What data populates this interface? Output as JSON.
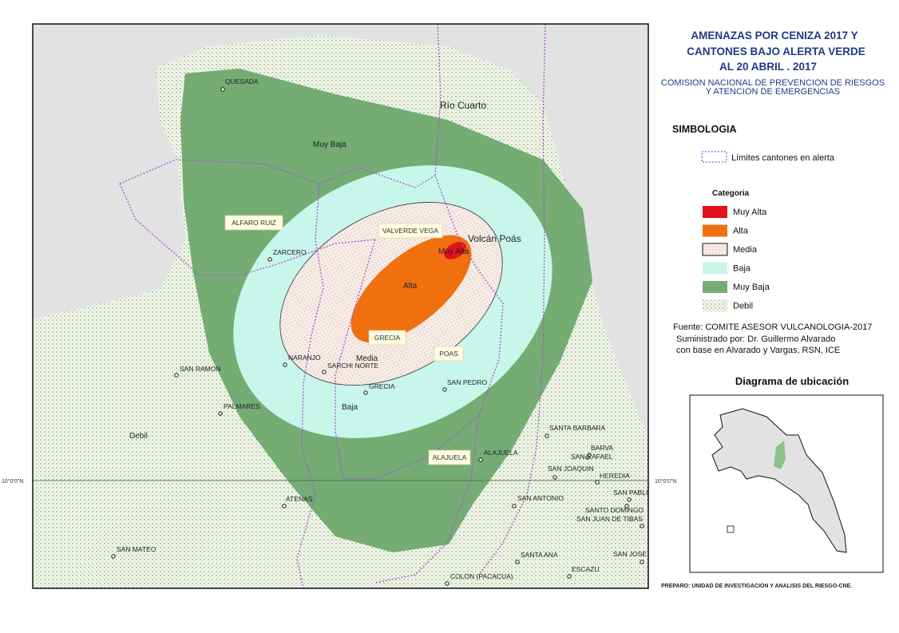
{
  "header": {
    "title": [
      "AMENAZAS POR CENIZA 2017 Y",
      "CANTONES BAJO ALERTA VERDE",
      "AL 20 ABRIL . 2017"
    ],
    "subtitle": [
      "COMISION NACIONAL DE PREVENCION DE RIESGOS",
      "Y ATENCION DE EMERGENCIAS"
    ]
  },
  "legend": {
    "heading": "SIMBOLOGIA",
    "boundary": "Límites cantones en alerta",
    "category_heading": "Categoria",
    "items": [
      {
        "label": "Muy Alta",
        "color": "#e4101c"
      },
      {
        "label": "Alta",
        "color": "#f07010"
      },
      {
        "label": "Media",
        "color": "#f7ece6"
      },
      {
        "label": "Baja",
        "color": "#c9f6ea"
      },
      {
        "label": "Muy Baja",
        "color": "#74ac74"
      },
      {
        "label": "Debil",
        "color": "#f2f5ea"
      }
    ]
  },
  "source": [
    "Fuente: COMITE ASESOR VULCANOLOGIA-2017",
    "Suministrado por: Dr. Guillermo Alvarado",
    "con base en Alvarado y Vargas, RSN, ICE"
  ],
  "inset": {
    "title": "Diagrama de ubicación"
  },
  "credit": "PREPARO: UNIDAD DE INVESTIGACION Y ANALISIS DEL RIESGO-CNE.",
  "map": {
    "zones": [
      "Muy Baja",
      "Baja",
      "Media",
      "Alta",
      "Muy Alta",
      "Debil"
    ],
    "volcano": "Volcán Poás",
    "river": "Río Cuarto",
    "cantons": [
      "ALFARO RUIZ",
      "VALVERDE VEGA",
      "GRECIA",
      "POAS",
      "ALAJUELA"
    ],
    "towns": [
      "QUESADA",
      "ZARCERO",
      "NARANJO",
      "SARCHI NORTE",
      "GRECIA",
      "SAN PEDRO",
      "SAN RAMON",
      "PALMARES",
      "ALAJUELA",
      "SANTA BARBARA",
      "BARVA",
      "SAN RAFAEL",
      "SAN JOAQUIN",
      "HEREDIA",
      "SAN PABLO",
      "ATENAS",
      "SAN ANTONIO",
      "SANTO DOMINGO",
      "SAN JUAN DE TIBAS",
      "SAN MATEO",
      "SANTA ANA",
      "SAN JOSE",
      "ESCAZU",
      "COLON (PACACUA)"
    ],
    "latitude": [
      "10°0'0\"N",
      "10°0'0\"N"
    ]
  }
}
